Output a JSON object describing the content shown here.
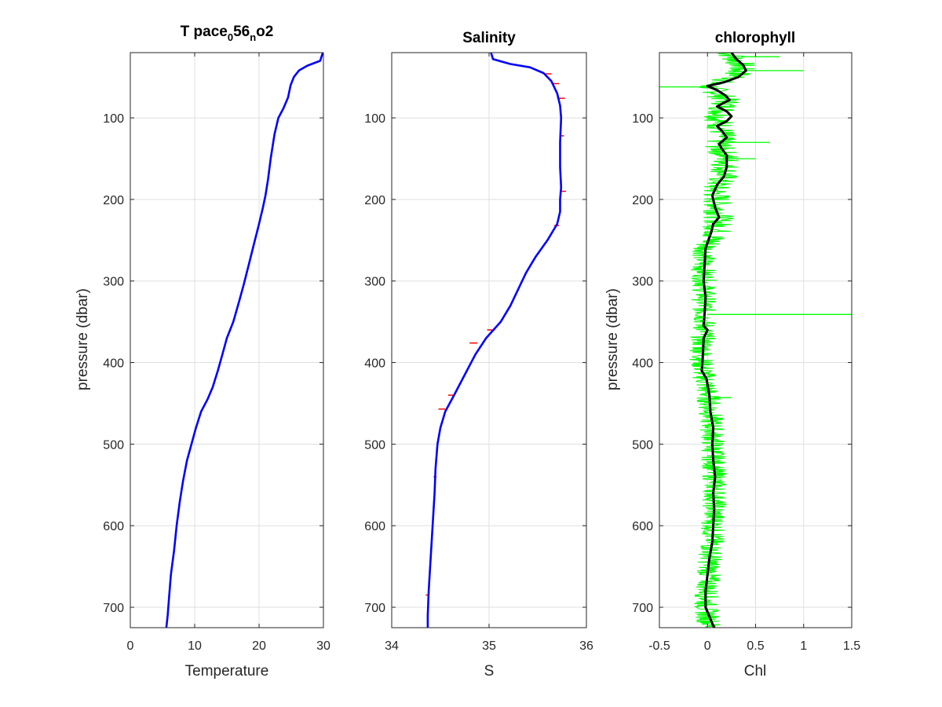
{
  "colors": {
    "axis": "#262626",
    "grid": "#dfdfdf",
    "blue_line": "#0000ff",
    "red_marks": "#ff0000",
    "green_raw": "#00ff00",
    "black_smooth": "#000000"
  },
  "chart_data": [
    {
      "type": "line",
      "title_main": "T pace",
      "title_sub1": "0",
      "title_mid": "56",
      "title_sub2": "n",
      "title_end": "o2",
      "xlabel": "Temperature",
      "ylabel": "pressure (dbar)",
      "xlim": [
        0,
        30
      ],
      "ylim": [
        20,
        725
      ],
      "y_reversed": true,
      "grid": true,
      "xticks": [
        0,
        10,
        20,
        30
      ],
      "xtick_labels": [
        "0",
        "10",
        "20",
        "30"
      ],
      "yticks": [
        100,
        200,
        300,
        400,
        500,
        600,
        700
      ],
      "ytick_labels": [
        "100",
        "200",
        "300",
        "400",
        "500",
        "600",
        "700"
      ],
      "series": [
        {
          "color": "#0000ff",
          "points": [
            [
              29.9,
              20
            ],
            [
              29.5,
              30
            ],
            [
              27.5,
              36
            ],
            [
              26.2,
              42
            ],
            [
              25.4,
              50
            ],
            [
              24.9,
              60
            ],
            [
              24.5,
              75
            ],
            [
              23.8,
              88
            ],
            [
              23.0,
              100
            ],
            [
              22.4,
              120
            ],
            [
              21.8,
              150
            ],
            [
              21.4,
              175
            ],
            [
              21.0,
              195
            ],
            [
              20.6,
              210
            ],
            [
              20.0,
              230
            ],
            [
              19.2,
              255
            ],
            [
              18.4,
              280
            ],
            [
              17.6,
              305
            ],
            [
              16.9,
              325
            ],
            [
              16.0,
              350
            ],
            [
              15.0,
              370
            ],
            [
              14.3,
              390
            ],
            [
              13.6,
              410
            ],
            [
              12.8,
              430
            ],
            [
              12.0,
              445
            ],
            [
              11.0,
              460
            ],
            [
              10.2,
              480
            ],
            [
              9.5,
              500
            ],
            [
              8.8,
              520
            ],
            [
              8.2,
              545
            ],
            [
              7.7,
              570
            ],
            [
              7.2,
              600
            ],
            [
              6.8,
              630
            ],
            [
              6.3,
              660
            ],
            [
              6.0,
              690
            ],
            [
              5.8,
              710
            ],
            [
              5.6,
              725
            ]
          ]
        }
      ]
    },
    {
      "type": "line",
      "title": "Salinity",
      "xlabel": "S",
      "ylabel": "",
      "xlim": [
        34,
        36
      ],
      "ylim": [
        20,
        725
      ],
      "y_reversed": true,
      "grid": true,
      "xticks": [
        34,
        35,
        36
      ],
      "xtick_labels": [
        "34",
        "35",
        "36"
      ],
      "yticks": [
        100,
        200,
        300,
        400,
        500,
        600,
        700
      ],
      "ytick_labels": [
        "100",
        "200",
        "300",
        "400",
        "500",
        "600",
        "700"
      ],
      "series": [
        {
          "color": "#0000ff",
          "points": [
            [
              35.02,
              20
            ],
            [
              35.04,
              28
            ],
            [
              35.22,
              34
            ],
            [
              35.42,
              38
            ],
            [
              35.56,
              45
            ],
            [
              35.64,
              55
            ],
            [
              35.7,
              70
            ],
            [
              35.73,
              85
            ],
            [
              35.74,
              100
            ],
            [
              35.73,
              130
            ],
            [
              35.73,
              160
            ],
            [
              35.74,
              185
            ],
            [
              35.73,
              200
            ],
            [
              35.73,
              215
            ],
            [
              35.7,
              230
            ],
            [
              35.6,
              250
            ],
            [
              35.48,
              270
            ],
            [
              35.38,
              290
            ],
            [
              35.3,
              310
            ],
            [
              35.22,
              330
            ],
            [
              35.12,
              350
            ],
            [
              34.97,
              370
            ],
            [
              34.86,
              390
            ],
            [
              34.75,
              415
            ],
            [
              34.64,
              440
            ],
            [
              34.55,
              460
            ],
            [
              34.5,
              480
            ],
            [
              34.47,
              500
            ],
            [
              34.45,
              530
            ],
            [
              34.44,
              560
            ],
            [
              34.42,
              600
            ],
            [
              34.4,
              640
            ],
            [
              34.38,
              680
            ],
            [
              34.37,
              710
            ],
            [
              34.37,
              725
            ]
          ]
        },
        {
          "color": "#ff0000",
          "name_hidden": true,
          "spikes": [
            [
              35.58,
              46,
              35.64
            ],
            [
              35.65,
              58,
              35.72
            ],
            [
              35.7,
              76,
              35.78
            ],
            [
              35.73,
              122,
              35.77
            ],
            [
              35.74,
              190,
              35.79
            ],
            [
              35.72,
              232,
              35.67
            ],
            [
              35.06,
              360,
              34.98
            ],
            [
              34.88,
              376,
              34.8
            ],
            [
              34.64,
              440,
              34.58
            ],
            [
              34.55,
              457,
              34.48
            ],
            [
              34.46,
              540,
              34.43
            ],
            [
              34.38,
              685,
              34.35
            ]
          ]
        }
      ]
    },
    {
      "type": "line",
      "title": "chlorophyll",
      "xlabel": "Chl",
      "ylabel": "pressure (dbar)",
      "xlim": [
        -0.5,
        1.5
      ],
      "ylim": [
        20,
        725
      ],
      "y_reversed": true,
      "grid": true,
      "xticks": [
        -0.5,
        0,
        0.5,
        1,
        1.5
      ],
      "xtick_labels": [
        "-0.5",
        "0",
        "0.5",
        "1",
        "1.5"
      ],
      "yticks": [
        100,
        200,
        300,
        400,
        500,
        600,
        700
      ],
      "ytick_labels": [
        "100",
        "200",
        "300",
        "400",
        "500",
        "600",
        "700"
      ],
      "raw_series": {
        "color": "#00ff00",
        "center": [
          [
            0.22,
            20
          ],
          [
            0.35,
            35
          ],
          [
            0.3,
            50
          ],
          [
            0.0,
            60
          ],
          [
            0.12,
            70
          ],
          [
            0.2,
            80
          ],
          [
            0.12,
            100
          ],
          [
            0.15,
            120
          ],
          [
            0.12,
            135
          ],
          [
            0.2,
            150
          ],
          [
            0.18,
            170
          ],
          [
            0.08,
            185
          ],
          [
            0.1,
            200
          ],
          [
            0.12,
            220
          ],
          [
            0.1,
            240
          ],
          [
            -0.02,
            260
          ],
          [
            -0.05,
            280
          ],
          [
            -0.03,
            300
          ],
          [
            -0.04,
            330
          ],
          [
            -0.03,
            350
          ],
          [
            -0.05,
            370
          ],
          [
            -0.06,
            400
          ],
          [
            -0.03,
            420
          ],
          [
            0.02,
            450
          ],
          [
            0.05,
            480
          ],
          [
            0.06,
            500
          ],
          [
            0.07,
            530
          ],
          [
            0.08,
            560
          ],
          [
            0.06,
            600
          ],
          [
            0.05,
            620
          ],
          [
            0.02,
            650
          ],
          [
            0.0,
            680
          ],
          [
            -0.02,
            700
          ],
          [
            0.03,
            725
          ]
        ],
        "spikes": [
          [
            -0.5,
            62,
            0.05
          ],
          [
            0.4,
            42,
            1.0
          ],
          [
            0.2,
            130,
            0.65
          ],
          [
            0.3,
            150,
            0.5
          ],
          [
            0.0,
            341,
            1.5
          ],
          [
            0.1,
            443,
            0.25
          ],
          [
            0.35,
            25,
            0.75
          ]
        ]
      },
      "smooth_series": {
        "color": "#000000",
        "points": [
          [
            0.25,
            20
          ],
          [
            0.3,
            28
          ],
          [
            0.37,
            35
          ],
          [
            0.4,
            42
          ],
          [
            0.32,
            50
          ],
          [
            0.18,
            56
          ],
          [
            0.0,
            61
          ],
          [
            0.1,
            66
          ],
          [
            0.18,
            72
          ],
          [
            0.23,
            78
          ],
          [
            0.16,
            82
          ],
          [
            0.1,
            86
          ],
          [
            0.2,
            92
          ],
          [
            0.25,
            98
          ],
          [
            0.2,
            104
          ],
          [
            0.1,
            110
          ],
          [
            0.15,
            116
          ],
          [
            0.2,
            124
          ],
          [
            0.12,
            132
          ],
          [
            0.15,
            138
          ],
          [
            0.2,
            146
          ],
          [
            0.2,
            160
          ],
          [
            0.17,
            172
          ],
          [
            0.1,
            182
          ],
          [
            0.05,
            195
          ],
          [
            0.08,
            210
          ],
          [
            0.12,
            222
          ],
          [
            0.06,
            230
          ],
          [
            0.04,
            240
          ],
          [
            -0.02,
            260
          ],
          [
            -0.03,
            280
          ],
          [
            -0.04,
            300
          ],
          [
            -0.02,
            320
          ],
          [
            -0.03,
            340
          ],
          [
            -0.04,
            355
          ],
          [
            0.0,
            360
          ],
          [
            -0.04,
            370
          ],
          [
            -0.05,
            395
          ],
          [
            -0.06,
            410
          ],
          [
            -0.01,
            420
          ],
          [
            0.02,
            440
          ],
          [
            0.03,
            460
          ],
          [
            0.06,
            480
          ],
          [
            0.05,
            500
          ],
          [
            0.06,
            520
          ],
          [
            0.08,
            540
          ],
          [
            0.06,
            560
          ],
          [
            0.07,
            580
          ],
          [
            0.06,
            600
          ],
          [
            0.05,
            620
          ],
          [
            0.02,
            640
          ],
          [
            0.0,
            660
          ],
          [
            -0.02,
            680
          ],
          [
            -0.02,
            700
          ],
          [
            0.05,
            720
          ],
          [
            0.07,
            725
          ]
        ]
      }
    }
  ]
}
